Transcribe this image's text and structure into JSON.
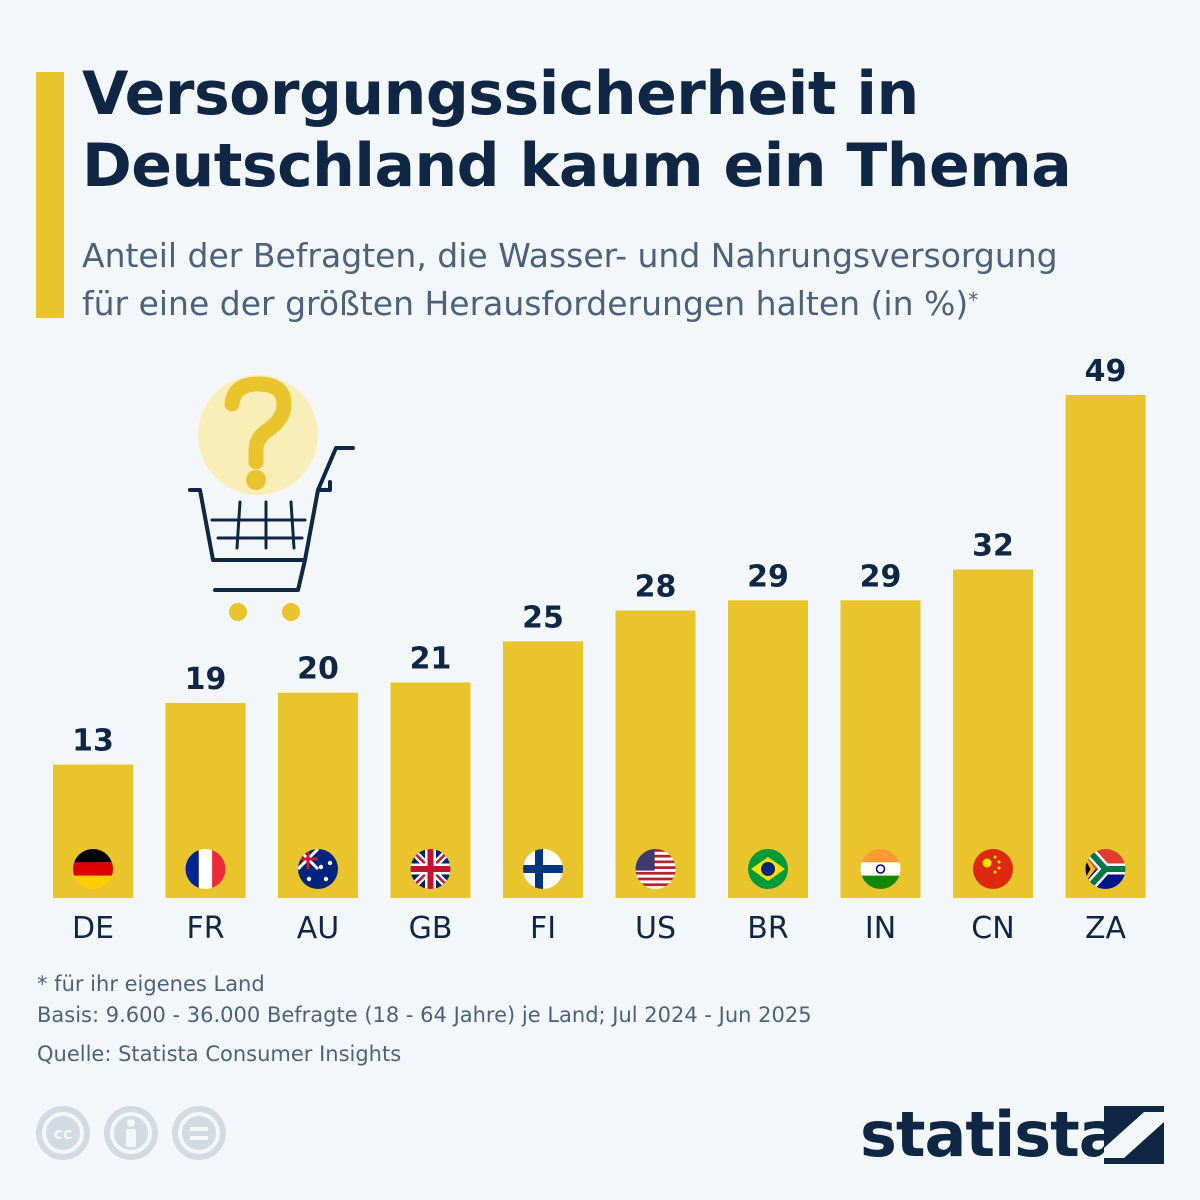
{
  "header": {
    "title_line1": "Versorgungssicherheit in",
    "title_line2": "Deutschland kaum ein Thema",
    "subtitle_line1": "Anteil der Befragten, die Wasser- und Nahrungsversorgung",
    "subtitle_line2": "für eine der größten Herausforderungen halten (in %)",
    "subtitle_mark": "*"
  },
  "chart_data": {
    "type": "bar",
    "categories": [
      "DE",
      "FR",
      "AU",
      "GB",
      "FI",
      "US",
      "BR",
      "IN",
      "CN",
      "ZA"
    ],
    "values": [
      13,
      19,
      20,
      21,
      25,
      28,
      29,
      29,
      32,
      49
    ],
    "title": "Versorgungssicherheit in Deutschland kaum ein Thema",
    "ylim": [
      0,
      49
    ],
    "grid": false,
    "bar_color": "#e9c42c",
    "flags": [
      "germany-flag",
      "france-flag",
      "australia-flag",
      "uk-flag",
      "finland-flag",
      "usa-flag",
      "brazil-flag",
      "india-flag",
      "china-flag",
      "south-africa-flag"
    ]
  },
  "illustration": {
    "icon": "shopping-cart-question-icon"
  },
  "footer": {
    "note": "* für ihr eigenes Land",
    "basis": "Basis: 9.600 - 36.000 Befragte (18 - 64 Jahre) je Land; Jul 2024 - Jun 2025",
    "source": "Quelle: Statista Consumer Insights",
    "license_icons": [
      "cc-icon",
      "attribution-icon",
      "no-derivatives-icon"
    ],
    "brand": "statista"
  },
  "colors": {
    "accent": "#e9c42c",
    "text": "#0f2744",
    "muted": "#4d627a",
    "background": "#f4f7fa"
  }
}
